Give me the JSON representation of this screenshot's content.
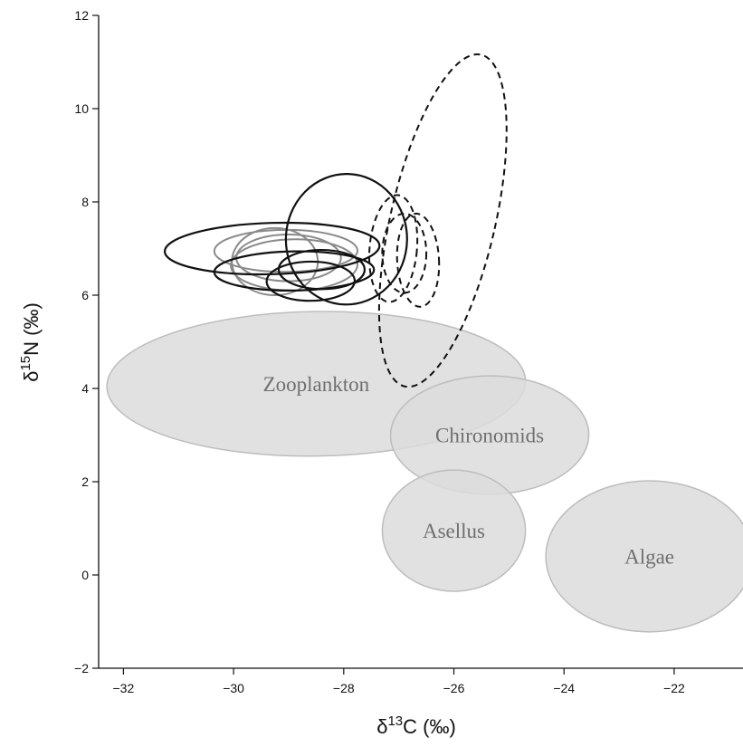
{
  "chart_data": {
    "type": "scatter",
    "title": "",
    "xlabel": {
      "prefix": "δ",
      "sup": "13",
      "main": "C (‰)"
    },
    "ylabel": {
      "prefix": "δ",
      "sup": "15",
      "main": "N (‰)"
    },
    "xlim": [
      -32.45,
      -20.75
    ],
    "ylim": [
      -2,
      12
    ],
    "xticks": [
      -32,
      -30,
      -28,
      -26,
      -24,
      -22
    ],
    "yticks": [
      -2,
      0,
      2,
      4,
      6,
      8,
      10,
      12
    ],
    "xtick_labels": [
      "−32",
      "−30",
      "−28",
      "−26",
      "−24",
      "−22"
    ],
    "ytick_labels": [
      "−2",
      "0",
      "2",
      "4",
      "6",
      "8",
      "10",
      "12"
    ],
    "grid": false,
    "colors": {
      "source_fill": "#dcdcdc",
      "source_edge": "#bdbdbd",
      "source_label": "#6f6f6f",
      "gray_ellipse": "#8a8a8a",
      "black_ellipse": "#111111"
    },
    "sources": [
      {
        "label": "Zooplankton",
        "cx": -28.5,
        "cy": 4.1,
        "rx": 3.8,
        "ry": 1.55,
        "angle": -0.8
      },
      {
        "label": "Chironomids",
        "cx": -25.35,
        "cy": 3.0,
        "rx": 1.8,
        "ry": 1.27,
        "angle": -0.4
      },
      {
        "label": "Asellus",
        "cx": -26.0,
        "cy": 0.95,
        "rx": 1.3,
        "ry": 1.3,
        "angle": 0
      },
      {
        "label": "Algae",
        "cx": -22.45,
        "cy": 0.4,
        "rx": 1.88,
        "ry": 1.62,
        "angle": -0.25
      }
    ],
    "gray_ellipses": [
      {
        "cx": -29.25,
        "cy": 6.72,
        "rx": 0.78,
        "ry": 0.72,
        "angle": 0
      },
      {
        "cx": -29.05,
        "cy": 6.95,
        "rx": 1.3,
        "ry": 0.45,
        "angle": -0.2
      },
      {
        "cx": -28.9,
        "cy": 6.65,
        "rx": 1.15,
        "ry": 0.55,
        "angle": -0.5
      },
      {
        "cx": -29.0,
        "cy": 6.8,
        "rx": 0.95,
        "ry": 0.5,
        "angle": 0.1
      }
    ],
    "black_ellipses": [
      {
        "cx": -29.3,
        "cy": 7.0,
        "rx": 1.95,
        "ry": 0.55,
        "angle": -1.6
      },
      {
        "cx": -28.9,
        "cy": 6.52,
        "rx": 1.45,
        "ry": 0.42,
        "angle": -0.9
      },
      {
        "cx": -28.6,
        "cy": 6.3,
        "rx": 0.8,
        "ry": 0.42,
        "angle": -0.4
      },
      {
        "cx": -28.4,
        "cy": 6.55,
        "rx": 0.78,
        "ry": 0.42,
        "angle": 0.3
      },
      {
        "cx": -27.95,
        "cy": 7.2,
        "rx": 1.1,
        "ry": 1.4,
        "angle": 1.5
      }
    ],
    "dashed_ellipses": [
      {
        "cx": -26.2,
        "cy": 7.6,
        "rx": 0.95,
        "ry": 3.65,
        "angle": 13
      },
      {
        "cx": -27.1,
        "cy": 7.0,
        "rx": 0.43,
        "ry": 1.15,
        "angle": 5
      },
      {
        "cx": -26.9,
        "cy": 6.9,
        "rx": 0.4,
        "ry": 0.85,
        "angle": 0
      },
      {
        "cx": -26.65,
        "cy": 6.75,
        "rx": 0.38,
        "ry": 1.0,
        "angle": -3
      }
    ]
  }
}
